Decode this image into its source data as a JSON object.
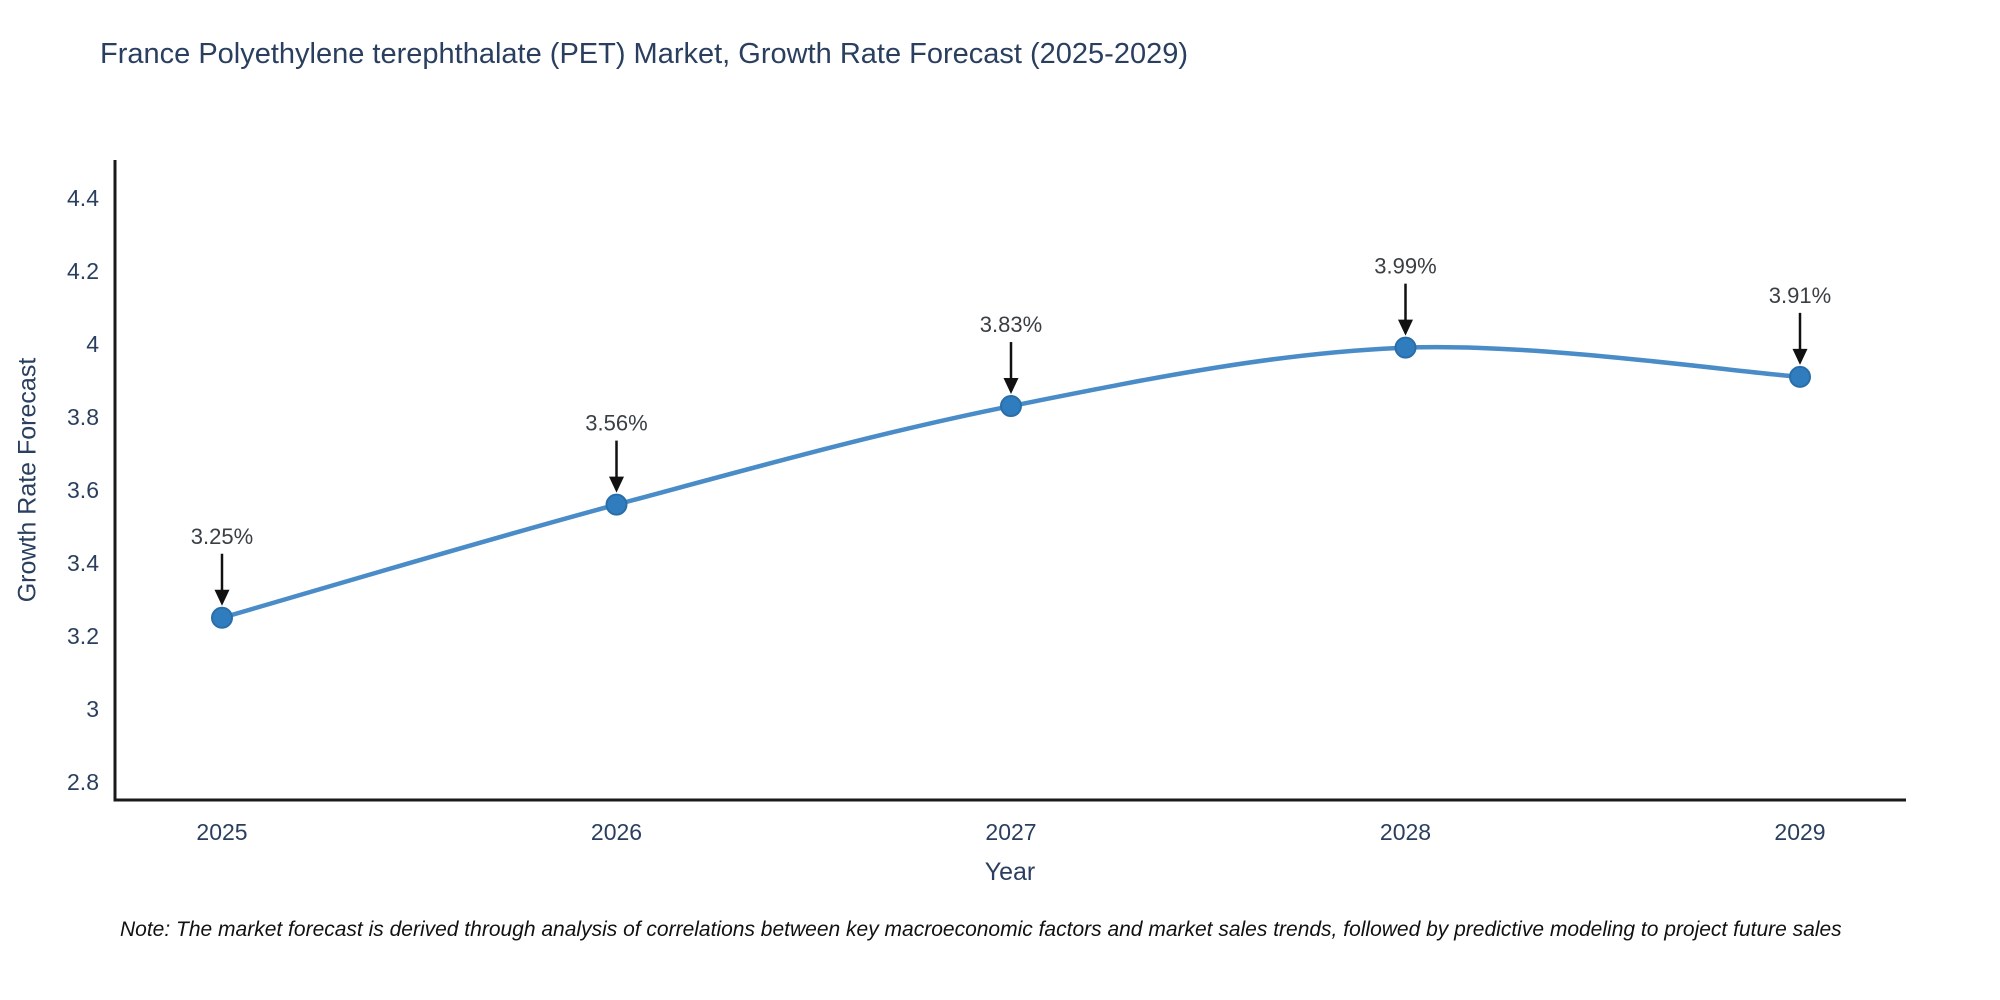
{
  "title": "France Polyethylene terephthalate (PET) Market, Growth Rate Forecast (2025-2029)",
  "note": "Note: The market forecast is derived through analysis of correlations between key macroeconomic factors and market sales trends, followed by predictive modeling to project future sales",
  "chart_data": {
    "type": "line",
    "title": "France Polyethylene terephthalate (PET) Market, Growth Rate Forecast (2025-2029)",
    "xlabel": "Year",
    "ylabel": "Growth Rate Forecast",
    "x": [
      2025,
      2026,
      2027,
      2028,
      2029
    ],
    "categories": [
      "2025",
      "2026",
      "2027",
      "2028",
      "2029"
    ],
    "series": [
      {
        "name": "Growth Rate Forecast",
        "values": [
          3.25,
          3.56,
          3.83,
          3.99,
          3.91
        ]
      }
    ],
    "point_labels": [
      "3.25%",
      "3.56%",
      "3.83%",
      "3.99%",
      "3.91%"
    ],
    "ylim": [
      2.8,
      4.4
    ],
    "yticks": [
      2.8,
      3.0,
      3.2,
      3.4,
      3.6,
      3.8,
      4.0,
      4.2,
      4.4
    ],
    "ytick_labels": [
      "2.8",
      "3",
      "3.2",
      "3.4",
      "3.6",
      "3.8",
      "4",
      "4.2",
      "4.4"
    ],
    "grid": false,
    "legend_position": "none",
    "line_shape": "spline",
    "colors": {
      "line": "#4a8cc7",
      "marker_fill": "#2f7dbe",
      "marker_edge": "#2a6ea8",
      "axis_line": "#1a1a1a",
      "tick_text": "#2a3f5f",
      "annotation_text": "#3a3f44",
      "arrow": "#111111",
      "title_text": "#2a3f5f",
      "background": "#ffffff"
    }
  }
}
